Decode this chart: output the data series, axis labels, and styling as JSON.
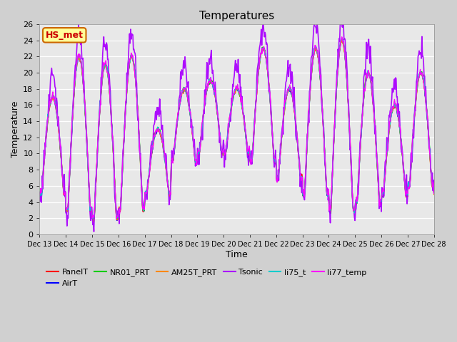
{
  "title": "Temperatures",
  "xlabel": "Time",
  "ylabel": "Temperature",
  "ylim": [
    0,
    26
  ],
  "yticks": [
    0,
    2,
    4,
    6,
    8,
    10,
    12,
    14,
    16,
    18,
    20,
    22,
    24,
    26
  ],
  "date_labels": [
    "Dec 13",
    "Dec 14",
    "Dec 15",
    "Dec 16",
    "Dec 17",
    "Dec 18",
    "Dec 19",
    "Dec 20",
    "Dec 21",
    "Dec 22",
    "Dec 23",
    "Dec 24",
    "Dec 25",
    "Dec 26",
    "Dec 27",
    "Dec 28"
  ],
  "xtick_positions": [
    0,
    1,
    2,
    3,
    4,
    5,
    6,
    7,
    8,
    9,
    10,
    11,
    12,
    13,
    14,
    15
  ],
  "series": {
    "PanelT": {
      "color": "#ff0000",
      "lw": 1.0
    },
    "AirT": {
      "color": "#0000ff",
      "lw": 1.0
    },
    "NR01_PRT": {
      "color": "#00cc00",
      "lw": 1.0
    },
    "AM25T_PRT": {
      "color": "#ff8800",
      "lw": 1.0
    },
    "Tsonic": {
      "color": "#aa00ff",
      "lw": 1.2
    },
    "li75_t": {
      "color": "#00cccc",
      "lw": 1.0
    },
    "li77_temp": {
      "color": "#ff00ff",
      "lw": 1.0
    }
  },
  "series_order": [
    "PanelT",
    "AirT",
    "NR01_PRT",
    "AM25T_PRT",
    "Tsonic",
    "li75_t",
    "li77_temp"
  ],
  "annotation_text": "HS_met",
  "annotation_color": "#cc0000",
  "annotation_bg": "#ffff99",
  "annotation_border": "#cc6600",
  "fig_bg_color": "#d0d0d0",
  "plot_bg_color": "#e8e8e8",
  "grid_color": "#ffffff",
  "n_days": 15,
  "pts_per_day": 48
}
